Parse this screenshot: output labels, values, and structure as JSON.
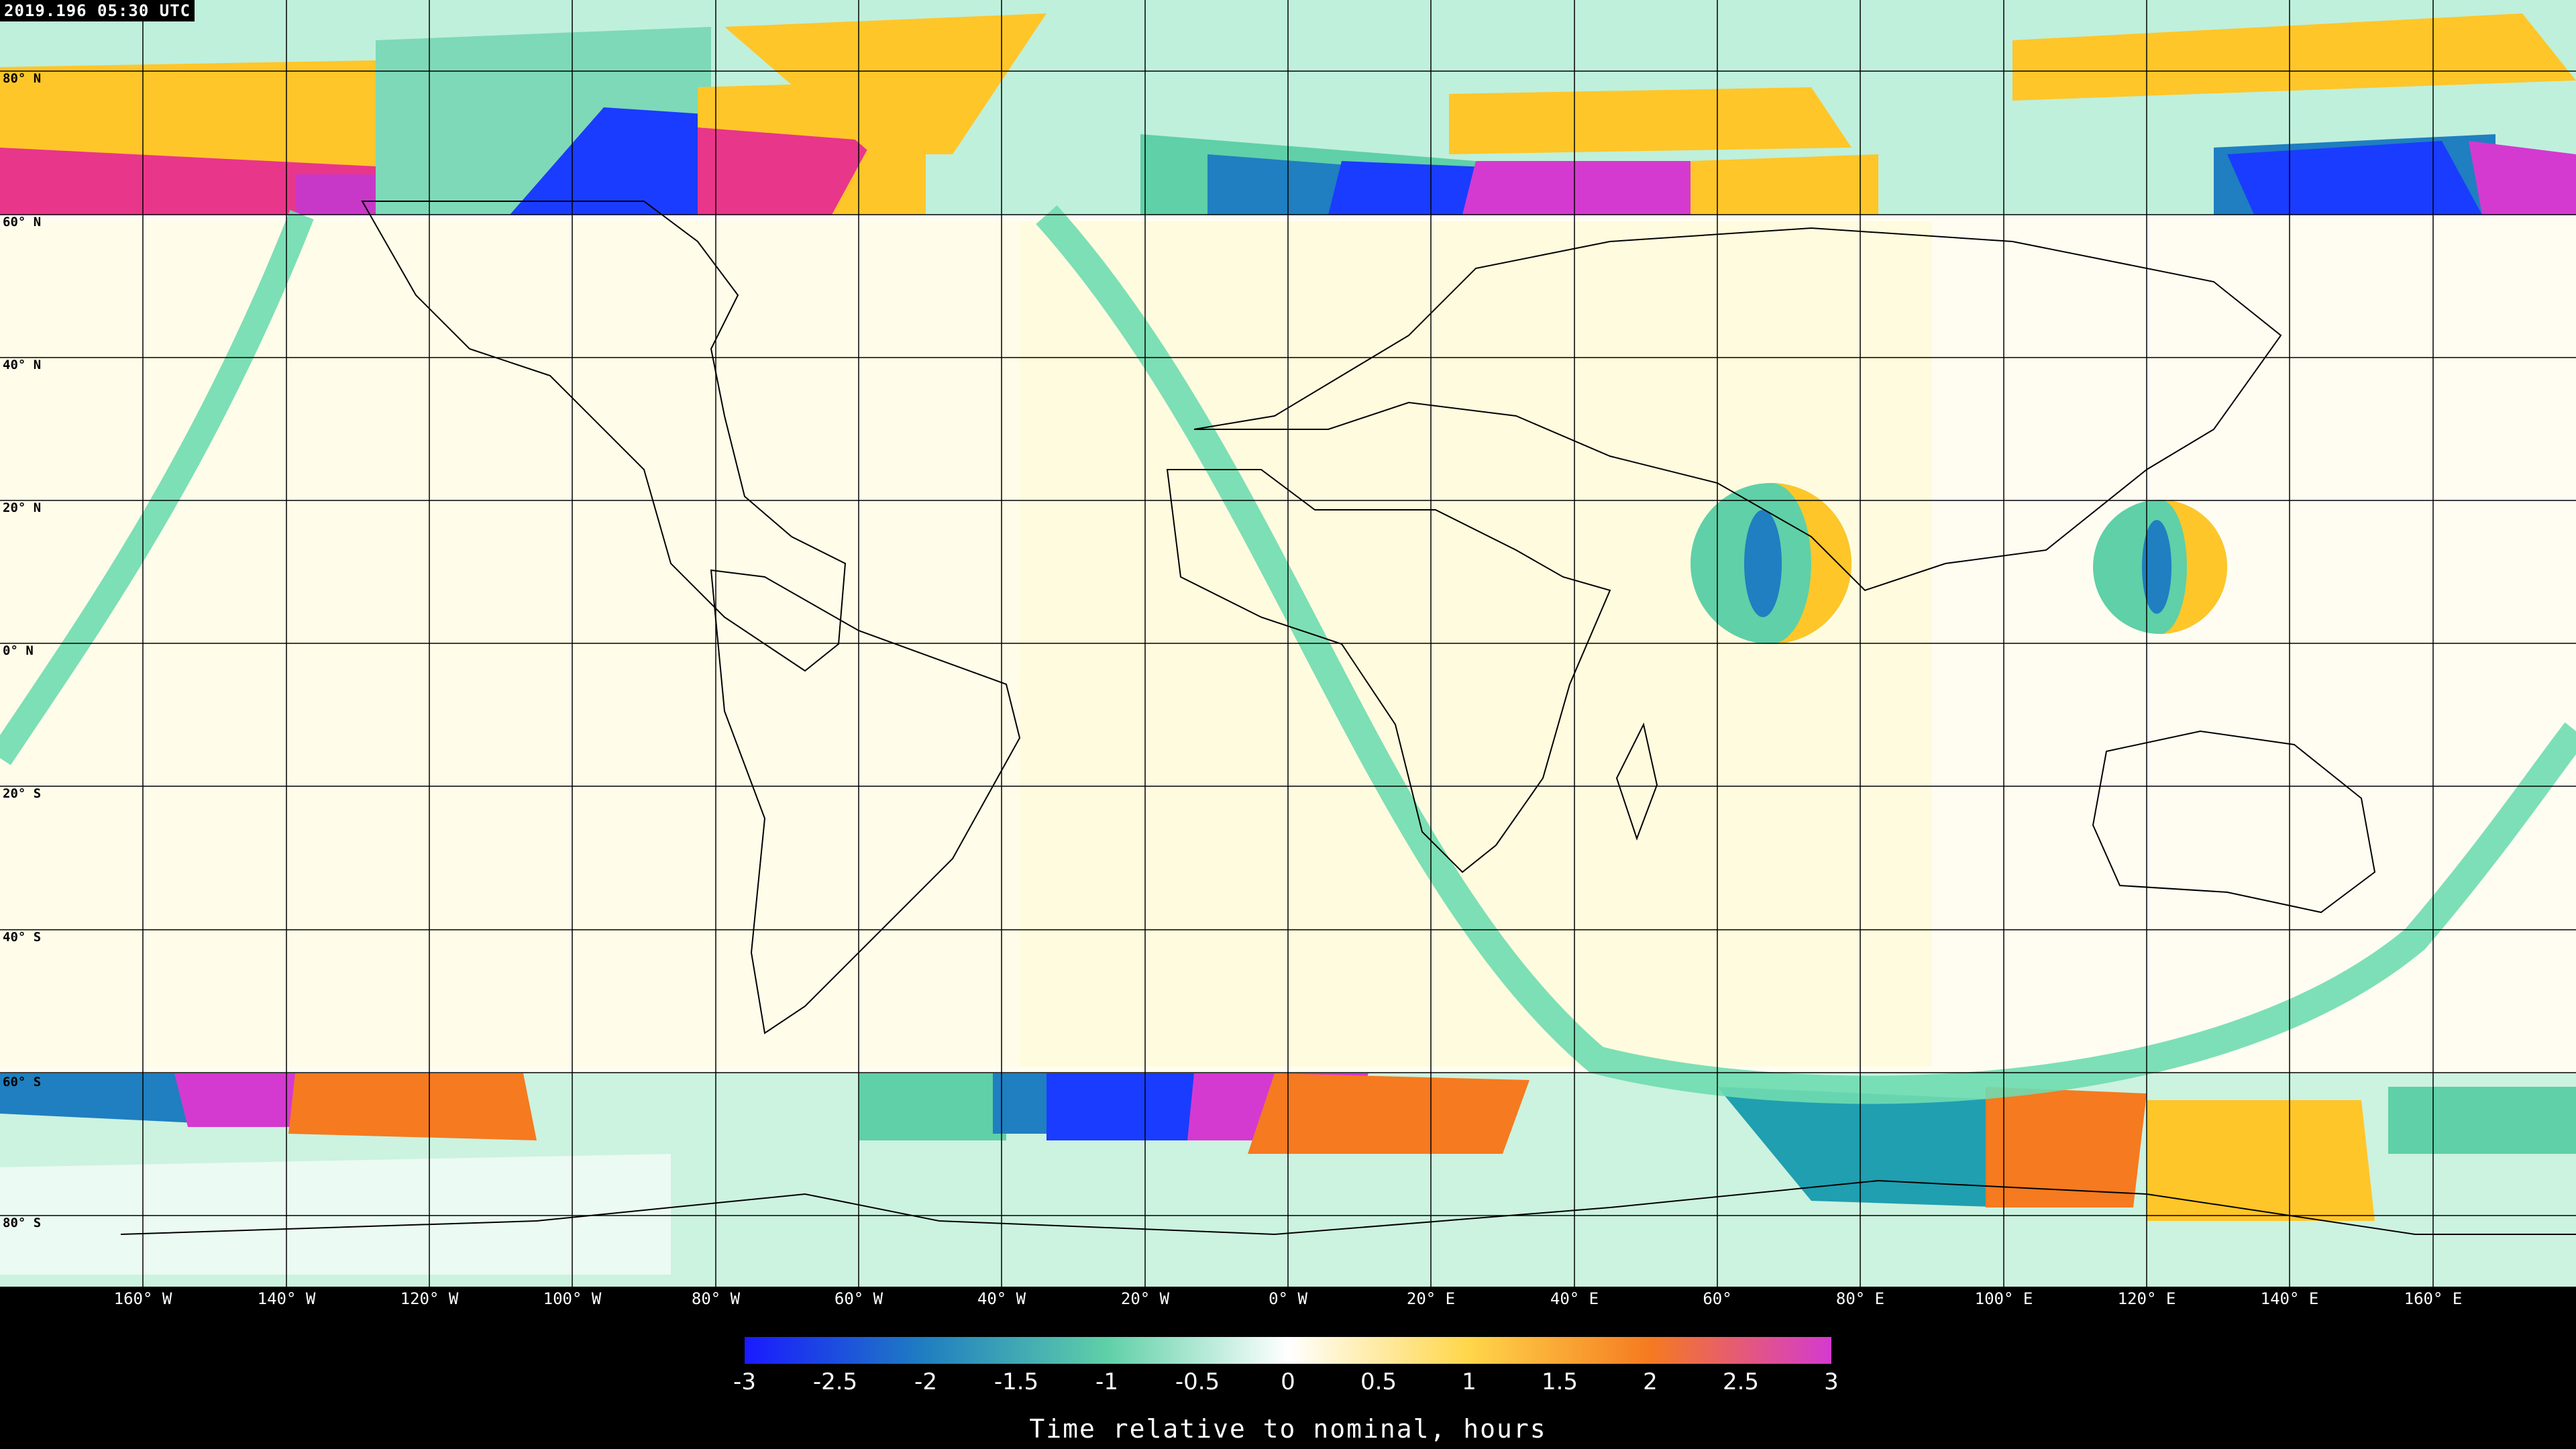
{
  "timestamp": "2019.196 05:30 UTC",
  "lat_labels": [
    "80° N",
    "60° N",
    "40° N",
    "20° N",
    "0° N",
    "20° S",
    "40° S",
    "60° S",
    "80° S"
  ],
  "lon_labels": [
    "160° W",
    "140° W",
    "120° W",
    "100° W",
    "80° W",
    "60° W",
    "40° W",
    "20° W",
    "0° W",
    "20° E",
    "40° E",
    "60°",
    "80° E",
    "100° E",
    "120° E",
    "140° E",
    "160° E"
  ],
  "colorbar": {
    "ticks": [
      "-3",
      "-2.5",
      "-2",
      "-1.5",
      "-1",
      "-0.5",
      "0",
      "0.5",
      "1",
      "1.5",
      "2",
      "2.5",
      "3"
    ],
    "title": "Time relative to nominal, hours",
    "colors": [
      "#1a1aff",
      "#1f7fc0",
      "#5fd0a8",
      "#ffffff",
      "#ffd64a",
      "#f57a20",
      "#d43ad0"
    ]
  }
}
